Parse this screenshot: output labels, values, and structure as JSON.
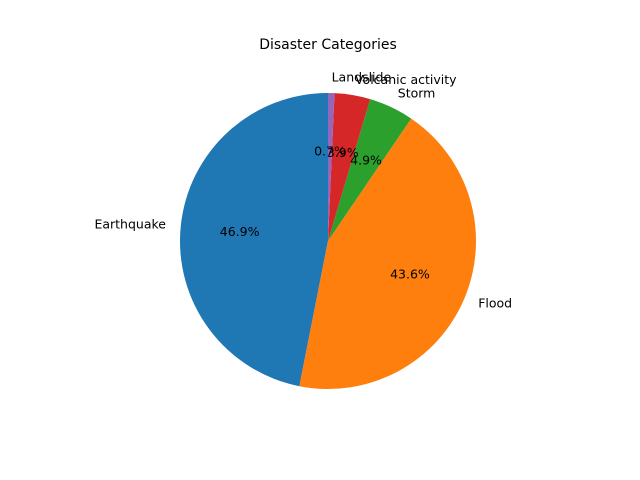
{
  "chart_data": {
    "type": "pie",
    "title": "Disaster Categories",
    "categories": [
      "Earthquake",
      "Flood",
      "Storm",
      "Volcanic activity",
      "Landslide"
    ],
    "values": [
      46.9,
      43.6,
      4.9,
      3.9,
      0.7
    ],
    "percent_labels": [
      "46.9%",
      "43.6%",
      "4.9%",
      "3.9%",
      "0.7%"
    ],
    "colors": [
      "#1f77b4",
      "#ff7f0e",
      "#2ca02c",
      "#d62728",
      "#9467bd"
    ],
    "start_angle_deg": 90,
    "direction": "counterclockwise",
    "legend": "none"
  }
}
